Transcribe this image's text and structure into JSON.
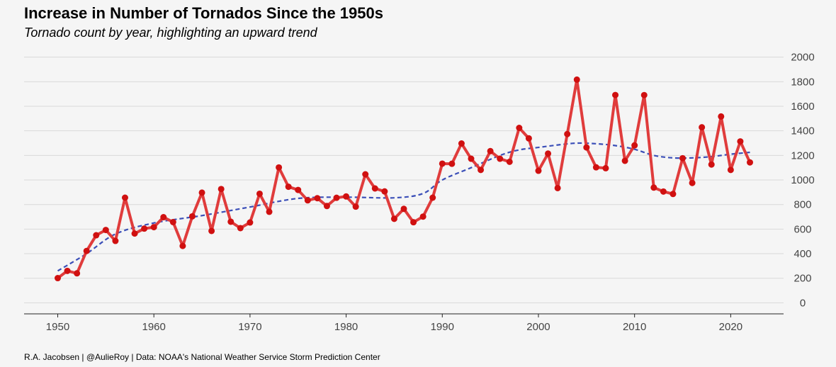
{
  "header": {
    "title": "Increase in Number of Tornados Since the 1950s",
    "subtitle": "Tornado count by year, highlighting an upward trend"
  },
  "footer": {
    "caption": "R.A. Jacobsen | @AulieRoy | Data: NOAA's National Weather Service Storm Prediction Center"
  },
  "chart_data": {
    "type": "line",
    "title": "Increase in Number of Tornados Since the 1950s",
    "subtitle": "Tornado count by year, highlighting an upward trend",
    "xlabel": "",
    "ylabel": "",
    "xlim": [
      1946.5,
      2025.5
    ],
    "ylim": [
      -90,
      2050
    ],
    "x_ticks": [
      1950,
      1960,
      1970,
      1980,
      1990,
      2000,
      2010,
      2020
    ],
    "y_ticks": [
      0,
      200,
      400,
      600,
      800,
      1000,
      1200,
      1400,
      1600,
      1800,
      2000
    ],
    "y_axis_position": "right",
    "grid": "horizontal",
    "legend": "none",
    "colors": {
      "series": "#e03c3c",
      "points": "#d01010",
      "trend": "#3b4fb8",
      "grid": "#d9d9d9",
      "background": "#f5f5f5"
    },
    "series": [
      {
        "x": [
          1950,
          1951,
          1952,
          1953,
          1954,
          1955,
          1956,
          1957,
          1958,
          1959,
          1960,
          1961,
          1962,
          1963,
          1964,
          1965,
          1966,
          1967,
          1968,
          1969,
          1970,
          1971,
          1972,
          1973,
          1974,
          1975,
          1976,
          1977,
          1978,
          1979,
          1980,
          1981,
          1982,
          1983,
          1984,
          1985,
          1986,
          1987,
          1988,
          1989,
          1990,
          1991,
          1992,
          1993,
          1994,
          1995,
          1996,
          1997,
          1998,
          1999,
          2000,
          2001,
          2002,
          2003,
          2004,
          2005,
          2006,
          2007,
          2008,
          2009,
          2010,
          2011,
          2012,
          2013,
          2014,
          2015,
          2016,
          2017,
          2018,
          2019,
          2020,
          2021,
          2022
        ],
        "values": [
          201,
          260,
          240,
          422,
          550,
          593,
          504,
          856,
          564,
          604,
          616,
          697,
          657,
          463,
          704,
          897,
          585,
          926,
          660,
          608,
          654,
          888,
          741,
          1102,
          945,
          919,
          834,
          852,
          788,
          855,
          866,
          783,
          1046,
          931,
          907,
          684,
          765,
          656,
          702,
          856,
          1133,
          1132,
          1297,
          1173,
          1082,
          1235,
          1173,
          1148,
          1424,
          1339,
          1075,
          1215,
          934,
          1374,
          1817,
          1265,
          1103,
          1096,
          1692,
          1156,
          1282,
          1691,
          938,
          906,
          886,
          1177,
          976,
          1429,
          1126,
          1517,
          1082,
          1314,
          1143
        ]
      }
    ],
    "trend": {
      "style": "dashed",
      "x": [
        1950,
        1953,
        1956,
        1960,
        1965,
        1970,
        1975,
        1980,
        1985,
        1988,
        1990,
        1993,
        1996,
        1998,
        2000,
        2002,
        2004,
        2006,
        2008,
        2010,
        2012,
        2014,
        2016,
        2018,
        2020,
        2022
      ],
      "values": [
        260,
        400,
        560,
        650,
        710,
        780,
        850,
        860,
        855,
        890,
        1000,
        1100,
        1200,
        1245,
        1265,
        1285,
        1300,
        1295,
        1280,
        1250,
        1200,
        1180,
        1180,
        1190,
        1210,
        1225
      ]
    }
  }
}
